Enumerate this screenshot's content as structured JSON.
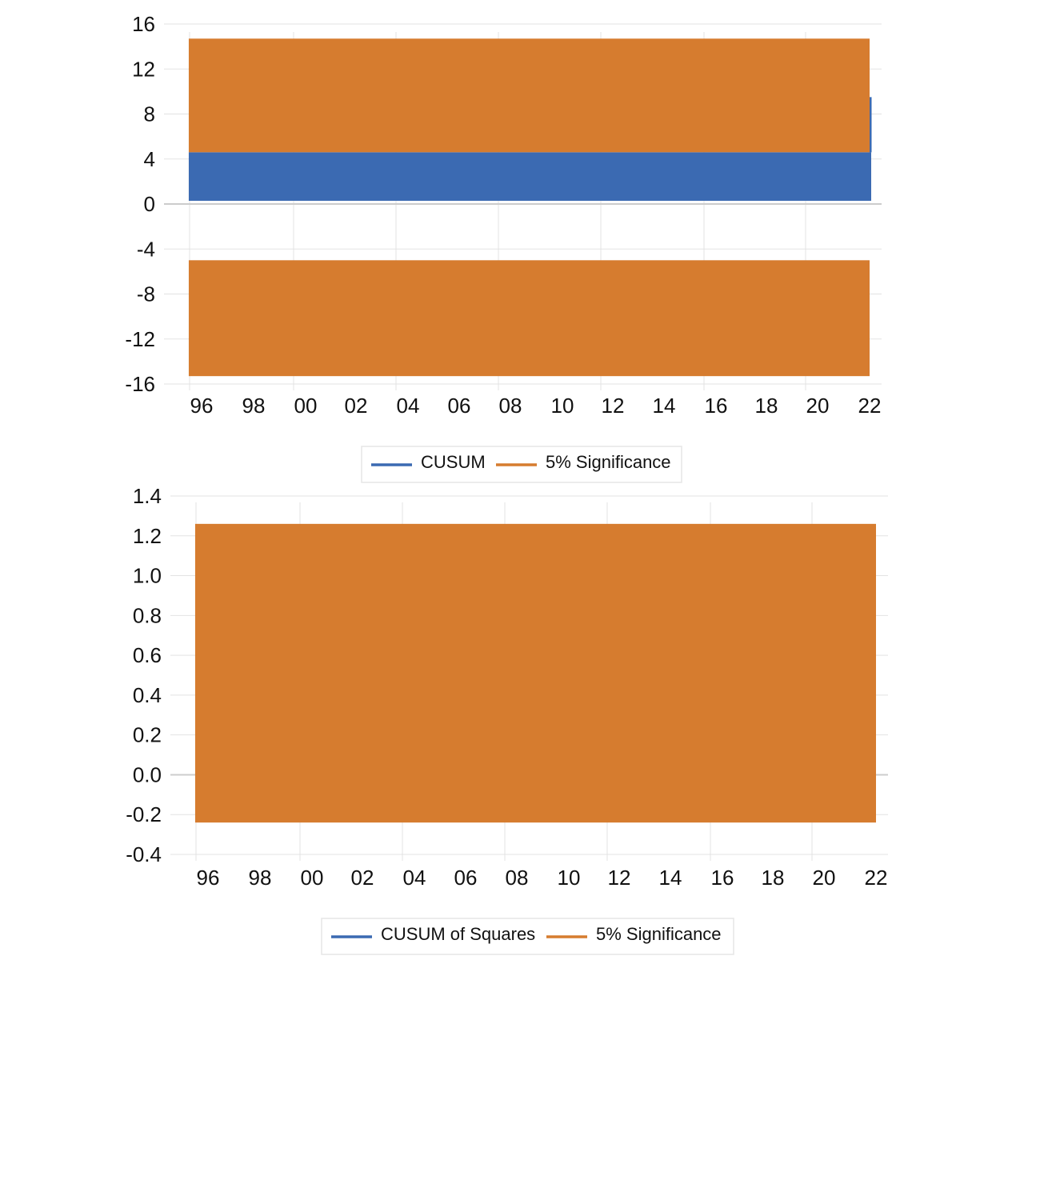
{
  "colors": {
    "cusum": "#3b6ab2",
    "significance": "#d67c2f",
    "grid": "#e3e3e3",
    "axis": "#cccccc"
  },
  "chart_data": [
    {
      "type": "area",
      "title": "",
      "xlabel": "",
      "ylabel": "",
      "x_tick_labels": [
        "96",
        "98",
        "00",
        "02",
        "04",
        "06",
        "08",
        "10",
        "12",
        "14",
        "16",
        "18",
        "20",
        "22"
      ],
      "x_range": [
        1995.3,
        2022
      ],
      "ylim": [
        -16,
        16
      ],
      "y_ticks": [
        16,
        12,
        8,
        4,
        0,
        -4,
        -8,
        -12,
        -16
      ],
      "y_tick_labels": [
        "16",
        "12",
        "8",
        "4",
        "0",
        "-4",
        "-8",
        "-12",
        "-16"
      ],
      "grid": true,
      "legend_position": "bottom-center",
      "series": [
        {
          "name": "CUSUM",
          "kind": "fill-to-zero",
          "x": [
            1995.5,
            2022
          ],
          "y": [
            4.6,
            4.6
          ],
          "end_spike_y": 9.5
        },
        {
          "name": "5% Significance",
          "kind": "bands",
          "x": [
            1995.5,
            2022
          ],
          "upper": [
            14.7,
            14.7
          ],
          "upper_base": [
            4.6,
            4.6
          ],
          "lower": [
            -5.0,
            -5.0
          ],
          "lower_base": [
            -15.3,
            -15.3
          ]
        }
      ]
    },
    {
      "type": "area",
      "title": "",
      "xlabel": "",
      "ylabel": "",
      "x_tick_labels": [
        "96",
        "98",
        "00",
        "02",
        "04",
        "06",
        "08",
        "10",
        "12",
        "14",
        "16",
        "18",
        "20",
        "22"
      ],
      "x_range": [
        1995.3,
        2022
      ],
      "ylim": [
        -0.4,
        1.4
      ],
      "y_ticks": [
        1.4,
        1.2,
        1.0,
        0.8,
        0.6,
        0.4,
        0.2,
        0.0,
        -0.2,
        -0.4
      ],
      "y_tick_labels": [
        "1.4",
        "1.2",
        "1.0",
        "0.8",
        "0.6",
        "0.4",
        "0.2",
        "0.0",
        "-0.2",
        "-0.4"
      ],
      "grid": true,
      "legend_position": "bottom-center",
      "series": [
        {
          "name": "CUSUM of Squares",
          "kind": "hidden"
        },
        {
          "name": "5% Significance",
          "kind": "band",
          "x": [
            1995.5,
            2022
          ],
          "upper": [
            1.26,
            1.26
          ],
          "lower": [
            -0.24,
            -0.24
          ]
        }
      ]
    }
  ]
}
